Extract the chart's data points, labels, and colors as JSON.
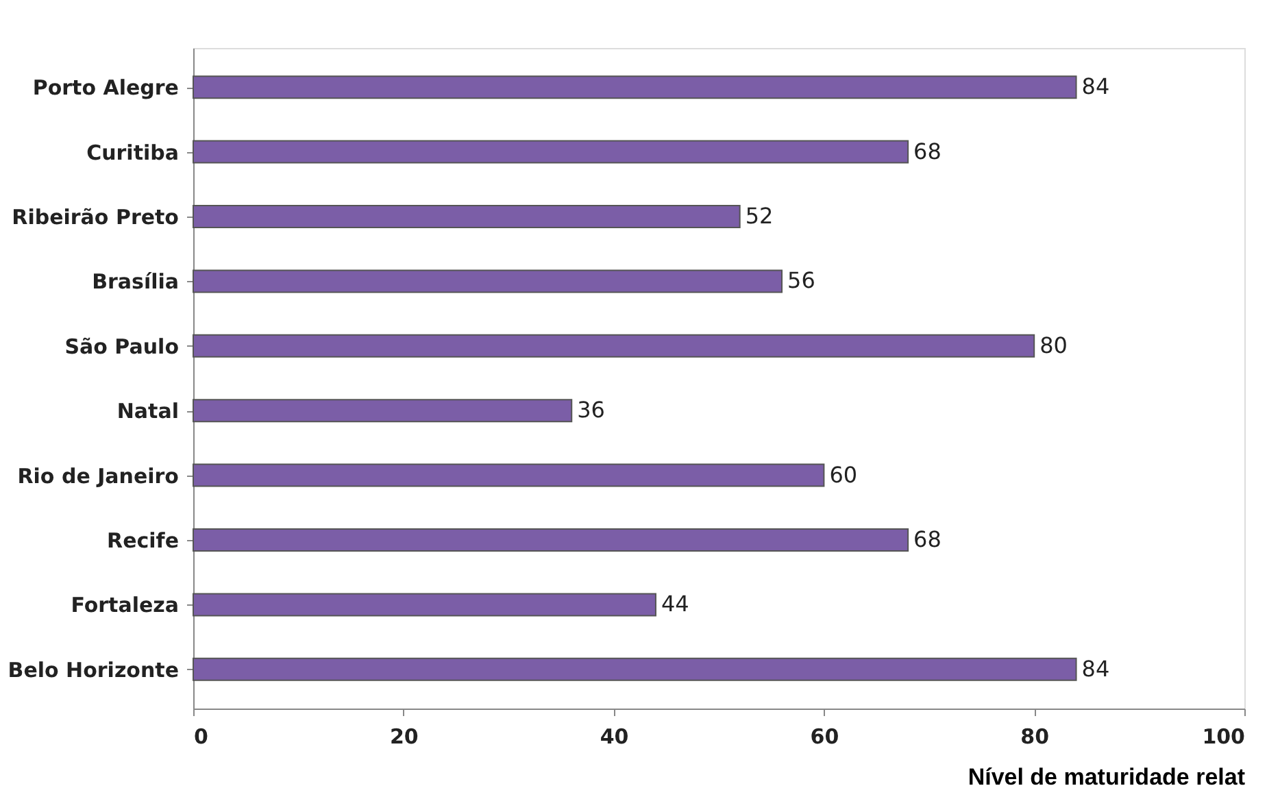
{
  "chart_data": {
    "type": "bar",
    "orientation": "horizontal",
    "xlabel": "Nível de maturidade relat",
    "categories": [
      "Porto Alegre",
      "Curitiba",
      "Ribeirão Preto",
      "Brasília",
      "São Paulo",
      "Natal",
      "Rio de Janeiro",
      "Recife",
      "Fortaleza",
      "Belo Horizonte"
    ],
    "values": [
      84,
      68,
      52,
      56,
      80,
      36,
      60,
      68,
      44,
      84
    ],
    "color": "#7b5ea7",
    "xlim": [
      0,
      100
    ],
    "xticks": [
      0,
      20,
      40,
      60,
      80,
      100
    ],
    "grid": false,
    "data_labels": true
  }
}
